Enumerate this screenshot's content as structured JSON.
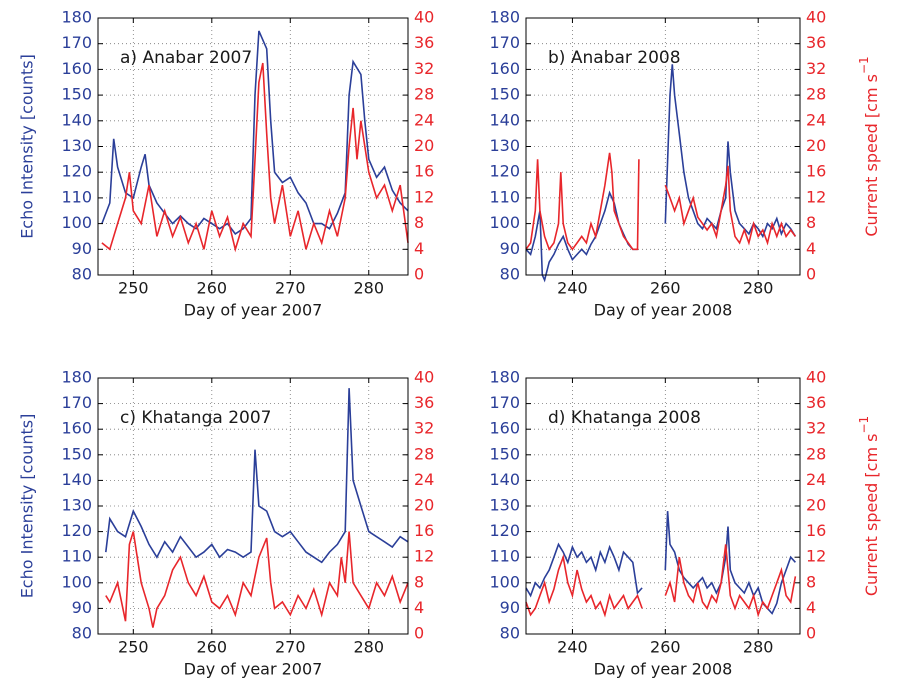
{
  "chart_data": [
    {
      "type": "line",
      "title": "a) Anabar 2007",
      "xlabel": "Day of year 2007",
      "ylabel": "Echo Intensity [counts]",
      "xlim": [
        245.5,
        285
      ],
      "xticks": [
        250,
        260,
        270,
        280
      ],
      "ylim": [
        80,
        180
      ],
      "yticks": [
        80,
        90,
        100,
        110,
        120,
        130,
        140,
        150,
        160,
        170,
        180
      ],
      "y2lim": [
        0,
        40
      ],
      "y2ticks": [
        0,
        4,
        8,
        12,
        16,
        20,
        24,
        28,
        32,
        36,
        40
      ],
      "grid": true,
      "series": [
        {
          "color": "#2b3f99",
          "x": [
            246,
            247,
            247.5,
            248,
            249,
            250,
            251,
            251.5,
            252,
            253,
            254,
            255,
            256,
            257,
            258,
            259,
            260,
            261,
            262,
            263,
            264,
            265,
            265.5,
            266,
            267,
            267.5,
            268,
            269,
            270,
            271,
            272,
            273,
            274,
            275,
            276,
            277,
            277.5,
            278,
            279,
            279.5,
            280,
            281,
            282,
            283,
            284,
            285
          ],
          "values": [
            100,
            108,
            133,
            122,
            112,
            110,
            122,
            127,
            115,
            108,
            104,
            100,
            103,
            100,
            98,
            102,
            100,
            98,
            100,
            96,
            98,
            102,
            150,
            175,
            168,
            140,
            120,
            116,
            118,
            112,
            108,
            100,
            100,
            98,
            104,
            112,
            150,
            163,
            158,
            140,
            125,
            118,
            122,
            113,
            108,
            105
          ]
        },
        {
          "color": "#e8262b",
          "axis": "y2",
          "x": [
            246,
            247,
            248,
            249,
            249.5,
            250,
            251,
            252,
            253,
            254,
            255,
            256,
            257,
            258,
            259,
            260,
            261,
            262,
            263,
            264,
            265,
            265.5,
            266,
            266.5,
            267,
            267.5,
            268,
            269,
            270,
            271,
            272,
            273,
            274,
            275,
            276,
            277,
            277.5,
            278,
            278.5,
            279,
            280,
            281,
            282,
            283,
            284,
            285
          ],
          "values": [
            5,
            4,
            8,
            12,
            16,
            10,
            8,
            14,
            6,
            10,
            6,
            9,
            5,
            8,
            4,
            10,
            6,
            9,
            4,
            8,
            6,
            18,
            30,
            33,
            22,
            12,
            8,
            14,
            6,
            10,
            4,
            8,
            5,
            10,
            6,
            12,
            20,
            26,
            18,
            24,
            16,
            12,
            14,
            10,
            14,
            5
          ]
        }
      ]
    },
    {
      "type": "line",
      "title": "b) Anabar 2008",
      "xlabel": "Day of year 2008",
      "y2label": "Current speed [cm s",
      "y2label_sup": "−1",
      "xlim": [
        230,
        289
      ],
      "xticks": [
        240,
        260,
        280
      ],
      "ylim": [
        80,
        180
      ],
      "yticks": [
        80,
        90,
        100,
        110,
        120,
        130,
        140,
        150,
        160,
        170,
        180
      ],
      "y2lim": [
        0,
        40
      ],
      "y2ticks": [
        0,
        4,
        8,
        12,
        16,
        20,
        24,
        28,
        32,
        36,
        40
      ],
      "grid": true,
      "series": [
        {
          "color": "#2b3f99",
          "x": [
            230,
            231,
            232,
            233,
            233.5,
            234,
            235,
            236,
            237,
            238,
            239,
            240,
            241,
            242,
            243,
            244,
            245,
            246,
            247,
            248,
            249,
            250,
            251,
            252,
            253,
            254,
            255,
            260,
            261,
            261.5,
            262,
            263,
            264,
            265,
            266,
            267,
            268,
            269,
            270,
            271,
            272,
            273,
            273.5,
            274,
            275,
            276,
            277,
            278,
            279,
            280,
            281,
            282,
            283,
            284,
            285,
            286,
            287,
            288
          ],
          "values": [
            90,
            88,
            95,
            105,
            80,
            78,
            85,
            88,
            92,
            95,
            90,
            86,
            88,
            90,
            88,
            92,
            95,
            100,
            105,
            112,
            108,
            100,
            96,
            92,
            90,
            90,
            null,
            100,
            150,
            162,
            150,
            135,
            120,
            110,
            105,
            100,
            98,
            102,
            100,
            98,
            105,
            110,
            132,
            120,
            105,
            100,
            98,
            96,
            100,
            98,
            95,
            100,
            98,
            102,
            96,
            100,
            98,
            95
          ]
        },
        {
          "color": "#e8262b",
          "axis": "y2",
          "x": [
            230,
            231,
            232,
            232.5,
            233,
            234,
            235,
            236,
            237,
            237.5,
            238,
            239,
            240,
            241,
            242,
            243,
            244,
            245,
            246,
            247,
            248,
            248.5,
            249,
            250,
            251,
            252,
            253,
            254,
            254.3,
            255,
            260,
            261,
            262,
            263,
            264,
            265,
            266,
            267,
            268,
            269,
            270,
            271,
            272,
            273,
            273.5,
            274,
            275,
            276,
            277,
            278,
            279,
            280,
            281,
            282,
            283,
            284,
            285,
            286,
            287,
            288
          ],
          "values": [
            4,
            5,
            10,
            18,
            10,
            6,
            4,
            5,
            8,
            16,
            8,
            5,
            4,
            5,
            6,
            5,
            8,
            6,
            10,
            14,
            19,
            16,
            10,
            8,
            6,
            5,
            4,
            4,
            18,
            null,
            14,
            12,
            10,
            12,
            8,
            10,
            12,
            9,
            8,
            7,
            8,
            6,
            10,
            14,
            17,
            10,
            6,
            5,
            7,
            5,
            8,
            6,
            7,
            5,
            8,
            6,
            8,
            6,
            7,
            6
          ]
        }
      ]
    },
    {
      "type": "line",
      "title": "c) Khatanga 2007",
      "xlabel": "Day of year 2007",
      "ylabel": "Echo Intensity [counts]",
      "xlim": [
        245.5,
        285
      ],
      "xticks": [
        250,
        260,
        270,
        280
      ],
      "ylim": [
        80,
        180
      ],
      "yticks": [
        80,
        90,
        100,
        110,
        120,
        130,
        140,
        150,
        160,
        170,
        180
      ],
      "y2lim": [
        0,
        40
      ],
      "y2ticks": [
        0,
        4,
        8,
        12,
        16,
        20,
        24,
        28,
        32,
        36,
        40
      ],
      "grid": true,
      "series": [
        {
          "color": "#2b3f99",
          "x": [
            246.5,
            247,
            248,
            249,
            250,
            251,
            252,
            253,
            254,
            255,
            256,
            257,
            258,
            259,
            260,
            261,
            262,
            263,
            264,
            265,
            265.5,
            266,
            267,
            268,
            269,
            270,
            271,
            272,
            273,
            274,
            275,
            276,
            277,
            277.5,
            278,
            279,
            280,
            281,
            282,
            283,
            284,
            285
          ],
          "values": [
            112,
            125,
            120,
            118,
            128,
            122,
            115,
            110,
            116,
            112,
            118,
            114,
            110,
            112,
            115,
            110,
            113,
            112,
            110,
            112,
            152,
            130,
            128,
            120,
            118,
            120,
            116,
            112,
            110,
            108,
            112,
            115,
            120,
            176,
            140,
            130,
            120,
            118,
            116,
            114,
            118,
            116
          ]
        },
        {
          "color": "#e8262b",
          "axis": "y2",
          "x": [
            246.5,
            247,
            248,
            249,
            249.5,
            250,
            251,
            252,
            252.5,
            253,
            254,
            255,
            256,
            257,
            258,
            259,
            260,
            261,
            262,
            263,
            264,
            265,
            266,
            267,
            267.5,
            268,
            269,
            270,
            271,
            272,
            273,
            274,
            275,
            276,
            276.5,
            277,
            277.5,
            278,
            279,
            280,
            281,
            282,
            283,
            284,
            285
          ],
          "values": [
            6,
            5,
            8,
            2,
            14,
            16,
            8,
            4,
            1,
            4,
            6,
            10,
            12,
            8,
            6,
            9,
            5,
            4,
            6,
            3,
            8,
            6,
            12,
            15,
            8,
            4,
            5,
            3,
            6,
            4,
            7,
            3,
            8,
            6,
            12,
            8,
            16,
            8,
            6,
            4,
            8,
            6,
            9,
            5,
            8
          ]
        }
      ]
    },
    {
      "type": "line",
      "title": "d) Khatanga 2008",
      "xlabel": "Day of year 2008",
      "y2label": "Current speed [cm s",
      "y2label_sup": "−1",
      "xlim": [
        230,
        289
      ],
      "xticks": [
        240,
        260,
        280
      ],
      "ylim": [
        80,
        180
      ],
      "yticks": [
        80,
        90,
        100,
        110,
        120,
        130,
        140,
        150,
        160,
        170,
        180
      ],
      "y2lim": [
        0,
        40
      ],
      "y2ticks": [
        0,
        4,
        8,
        12,
        16,
        20,
        24,
        28,
        32,
        36,
        40
      ],
      "grid": true,
      "series": [
        {
          "color": "#2b3f99",
          "x": [
            230,
            231,
            232,
            233,
            234,
            235,
            236,
            237,
            238,
            239,
            240,
            241,
            242,
            243,
            244,
            245,
            246,
            247,
            248,
            249,
            250,
            251,
            252,
            253,
            254,
            255,
            256,
            260,
            260.5,
            261,
            262,
            263,
            264,
            265,
            266,
            267,
            268,
            269,
            270,
            271,
            272,
            273,
            273.5,
            274,
            275,
            276,
            277,
            278,
            279,
            280,
            281,
            282,
            283,
            284,
            285,
            286,
            287,
            288
          ],
          "values": [
            98,
            95,
            100,
            98,
            102,
            105,
            110,
            115,
            112,
            108,
            114,
            110,
            112,
            108,
            110,
            105,
            112,
            108,
            114,
            110,
            105,
            112,
            110,
            108,
            96,
            98,
            null,
            105,
            128,
            115,
            112,
            105,
            102,
            100,
            98,
            100,
            102,
            98,
            100,
            96,
            100,
            110,
            122,
            105,
            100,
            98,
            96,
            100,
            95,
            98,
            92,
            90,
            88,
            92,
            100,
            105,
            110,
            108
          ]
        },
        {
          "color": "#e8262b",
          "axis": "y2",
          "x": [
            230,
            231,
            232,
            233,
            234,
            235,
            236,
            237,
            238,
            239,
            240,
            241,
            242,
            243,
            244,
            245,
            246,
            247,
            248,
            249,
            250,
            251,
            252,
            253,
            254,
            255,
            256,
            260,
            261,
            262,
            263,
            264,
            265,
            266,
            267,
            268,
            269,
            270,
            271,
            272,
            273,
            274,
            275,
            276,
            277,
            278,
            279,
            280,
            281,
            282,
            283,
            284,
            285,
            286,
            287,
            288
          ],
          "values": [
            5,
            3,
            4,
            6,
            8,
            5,
            7,
            10,
            12,
            8,
            6,
            10,
            7,
            5,
            6,
            4,
            5,
            3,
            6,
            4,
            5,
            6,
            4,
            5,
            6,
            4,
            null,
            6,
            8,
            5,
            12,
            8,
            6,
            5,
            8,
            5,
            4,
            6,
            5,
            8,
            14,
            6,
            4,
            6,
            5,
            4,
            6,
            3,
            5,
            4,
            6,
            8,
            10,
            6,
            5,
            9
          ]
        }
      ]
    }
  ]
}
